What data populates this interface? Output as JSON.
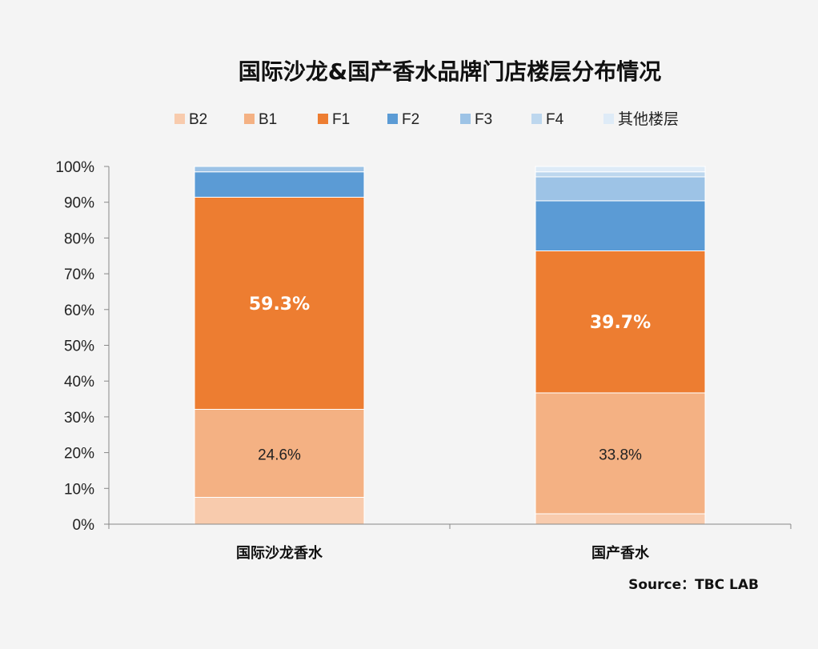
{
  "chart_data": {
    "type": "bar",
    "stacked": true,
    "title": "国际沙龙&国产香水品牌门店楼层分布情况",
    "source": "Source：TBC LAB",
    "categories": [
      "国际沙龙香水",
      "国产香水"
    ],
    "y_ticks": [
      "0%",
      "10%",
      "20%",
      "30%",
      "40%",
      "50%",
      "60%",
      "70%",
      "80%",
      "90%",
      "100%"
    ],
    "ylim": [
      0,
      100
    ],
    "legend_position": "top",
    "grid": false,
    "series": [
      {
        "name": "B2",
        "color": "#f8cbad",
        "values": [
          7.5,
          2.9
        ]
      },
      {
        "name": "B1",
        "color": "#f4b183",
        "values": [
          24.6,
          33.8
        ]
      },
      {
        "name": "F1",
        "color": "#ed7d31",
        "values": [
          59.3,
          39.7
        ]
      },
      {
        "name": "F2",
        "color": "#5b9bd5",
        "values": [
          7.1,
          14.0
        ]
      },
      {
        "name": "F3",
        "color": "#9dc3e6",
        "values": [
          1.5,
          6.7
        ]
      },
      {
        "name": "F4",
        "color": "#bdd7ee",
        "values": [
          0.0,
          1.4
        ]
      },
      {
        "name": "其他楼层",
        "color": "#deebf7",
        "values": [
          0.0,
          1.5
        ]
      }
    ],
    "data_labels": [
      {
        "category": 0,
        "series": 1,
        "text": "24.6%",
        "style": "small"
      },
      {
        "category": 0,
        "series": 2,
        "text": "59.3%",
        "style": "big"
      },
      {
        "category": 1,
        "series": 1,
        "text": "33.8%",
        "style": "small"
      },
      {
        "category": 1,
        "series": 2,
        "text": "39.7%",
        "style": "big"
      }
    ]
  }
}
